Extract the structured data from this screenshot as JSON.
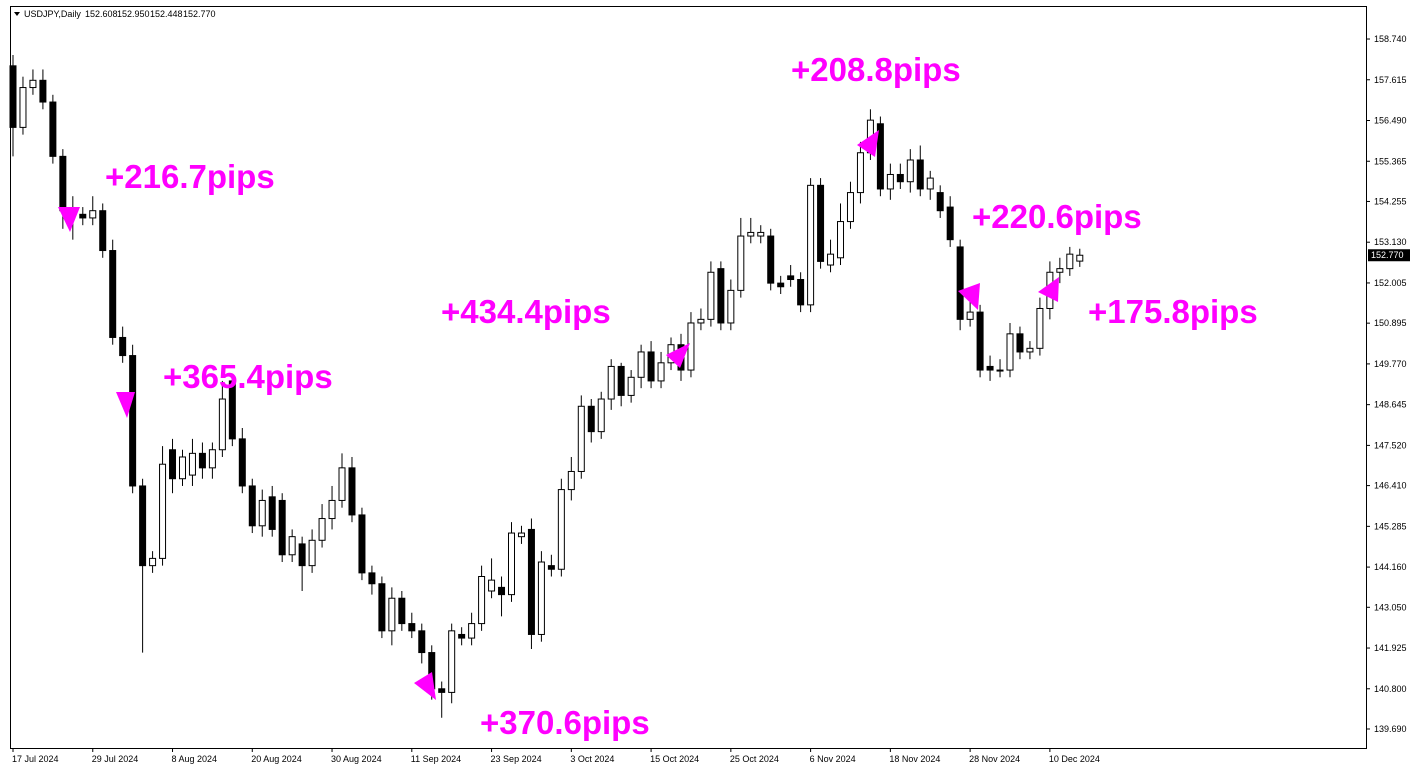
{
  "chart_data": {
    "type": "candlestick",
    "header": {
      "symbol": "USDJPY,Daily",
      "ohlc": [
        "152.608",
        "152.950",
        "152.448",
        "152.770"
      ]
    },
    "categories": [
      "17 Jul 2024",
      null,
      null,
      null,
      null,
      null,
      null,
      null,
      "29 Jul 2024",
      null,
      null,
      null,
      null,
      null,
      null,
      null,
      "8 Aug 2024",
      null,
      null,
      null,
      null,
      null,
      null,
      null,
      "20 Aug 2024",
      null,
      null,
      null,
      null,
      null,
      null,
      null,
      "30 Aug 2024",
      null,
      null,
      null,
      null,
      null,
      null,
      null,
      "11 Sep 2024",
      null,
      null,
      null,
      null,
      null,
      null,
      null,
      "23 Sep 2024",
      null,
      null,
      null,
      null,
      null,
      null,
      null,
      "3 Oct 2024",
      null,
      null,
      null,
      null,
      null,
      null,
      null,
      "15 Oct 2024",
      null,
      null,
      null,
      null,
      null,
      null,
      null,
      "25 Oct 2024",
      null,
      null,
      null,
      null,
      null,
      null,
      null,
      "6 Nov 2024",
      null,
      null,
      null,
      null,
      null,
      null,
      null,
      "18 Nov 2024",
      null,
      null,
      null,
      null,
      null,
      null,
      null,
      "28 Nov 2024",
      null,
      null,
      null,
      null,
      null,
      null,
      null,
      "10 Dec 2024",
      null,
      null,
      null
    ],
    "open": [
      158.0,
      156.3,
      157.4,
      157.6,
      157.0,
      155.5,
      154.0,
      153.9,
      153.8,
      154.0,
      152.9,
      150.5,
      150.0,
      146.4,
      144.2,
      144.4,
      147.4,
      146.6,
      146.7,
      147.3,
      146.9,
      147.4,
      149.3,
      147.7,
      146.4,
      145.3,
      146.1,
      146.0,
      144.5,
      144.8,
      144.2,
      144.9,
      145.5,
      146.0,
      146.9,
      145.6,
      144.0,
      143.7,
      142.4,
      143.3,
      142.6,
      142.4,
      141.8,
      140.8,
      140.7,
      142.3,
      142.2,
      142.6,
      143.5,
      143.6,
      143.4,
      145.0,
      145.2,
      142.3,
      144.2,
      144.1,
      146.3,
      146.8,
      148.6,
      147.9,
      148.8,
      149.7,
      148.9,
      149.4,
      150.1,
      149.3,
      149.8,
      150.3,
      149.6,
      150.9,
      151.0,
      152.4,
      150.9,
      151.8,
      153.3,
      153.3,
      153.3,
      152.0,
      152.2,
      152.1,
      151.4,
      154.7,
      152.5,
      152.7,
      153.7,
      154.5,
      155.6,
      156.4,
      154.6,
      155.0,
      154.8,
      155.4,
      154.6,
      154.5,
      154.1,
      153.0,
      151.0,
      151.2,
      149.7,
      149.6,
      149.6,
      150.6,
      150.1,
      150.2,
      151.3,
      152.3,
      152.4,
      152.608
    ],
    "high": [
      158.3,
      157.7,
      157.9,
      157.9,
      157.2,
      155.7,
      154.4,
      154.1,
      154.4,
      154.2,
      153.2,
      150.8,
      150.3,
      146.6,
      144.6,
      147.5,
      147.7,
      147.4,
      147.7,
      147.6,
      147.6,
      149.3,
      149.5,
      148.0,
      146.6,
      146.3,
      146.4,
      146.2,
      145.2,
      145.0,
      145.2,
      145.9,
      146.4,
      147.3,
      147.2,
      145.8,
      144.2,
      143.9,
      143.6,
      143.5,
      142.9,
      142.6,
      142.0,
      141.0,
      142.6,
      142.5,
      142.9,
      144.2,
      144.4,
      143.9,
      145.4,
      145.3,
      145.5,
      144.6,
      144.5,
      146.6,
      147.2,
      148.9,
      148.8,
      149.0,
      149.9,
      149.8,
      149.6,
      150.3,
      150.4,
      150.1,
      150.5,
      150.6,
      151.2,
      151.3,
      152.6,
      152.6,
      152.1,
      153.8,
      153.8,
      153.6,
      153.5,
      152.2,
      152.5,
      152.3,
      154.9,
      154.9,
      153.2,
      154.2,
      154.8,
      155.9,
      156.8,
      156.6,
      155.3,
      155.3,
      155.7,
      155.8,
      155.1,
      154.7,
      154.4,
      153.2,
      151.5,
      151.4,
      150.0,
      149.9,
      150.9,
      150.8,
      150.4,
      151.6,
      152.6,
      152.7,
      153.0,
      152.95
    ],
    "low": [
      155.5,
      156.1,
      157.2,
      156.8,
      155.3,
      153.5,
      153.2,
      153.6,
      153.6,
      152.7,
      150.3,
      149.8,
      146.2,
      141.8,
      144.0,
      144.2,
      146.2,
      146.4,
      146.4,
      146.6,
      146.6,
      147.2,
      147.5,
      146.2,
      145.1,
      145.0,
      145.0,
      144.3,
      144.3,
      143.5,
      144.0,
      144.7,
      145.2,
      145.8,
      145.4,
      143.8,
      143.4,
      142.2,
      142.0,
      142.4,
      142.2,
      141.5,
      140.5,
      140.0,
      140.4,
      142.0,
      142.0,
      142.4,
      143.3,
      142.8,
      143.2,
      144.8,
      141.9,
      142.1,
      143.9,
      143.9,
      146.0,
      146.6,
      147.6,
      147.7,
      148.5,
      148.6,
      148.7,
      149.1,
      149.1,
      149.1,
      149.6,
      149.3,
      149.4,
      150.7,
      150.8,
      150.7,
      150.7,
      151.6,
      153.1,
      153.1,
      151.8,
      151.7,
      151.9,
      151.2,
      151.2,
      152.4,
      152.3,
      152.5,
      153.5,
      154.2,
      155.4,
      154.4,
      154.3,
      154.6,
      154.5,
      154.4,
      154.3,
      153.8,
      153.0,
      150.7,
      150.8,
      149.4,
      149.3,
      149.4,
      149.4,
      149.9,
      149.9,
      150.0,
      151.0,
      152.0,
      152.2,
      152.448
    ],
    "close": [
      156.3,
      157.4,
      157.6,
      157.0,
      155.5,
      154.0,
      153.9,
      153.8,
      154.0,
      152.9,
      150.5,
      150.0,
      146.4,
      144.2,
      144.4,
      147.0,
      146.6,
      147.2,
      147.3,
      146.9,
      147.4,
      148.8,
      147.7,
      146.4,
      145.3,
      146.0,
      145.2,
      144.5,
      145.0,
      144.2,
      144.9,
      145.5,
      146.0,
      146.9,
      145.6,
      144.0,
      143.7,
      142.4,
      143.3,
      142.6,
      142.4,
      141.8,
      140.8,
      140.7,
      142.4,
      142.2,
      142.6,
      143.9,
      143.8,
      143.4,
      145.1,
      145.1,
      142.3,
      144.3,
      144.1,
      146.3,
      146.8,
      148.6,
      147.9,
      148.8,
      149.7,
      148.9,
      149.4,
      150.1,
      149.3,
      149.8,
      150.3,
      149.6,
      150.9,
      151.0,
      152.3,
      150.9,
      151.8,
      153.3,
      153.4,
      153.4,
      152.0,
      151.9,
      152.1,
      151.4,
      154.7,
      152.6,
      152.8,
      153.7,
      154.5,
      155.6,
      156.5,
      154.6,
      155.0,
      154.8,
      155.4,
      154.6,
      154.9,
      154.0,
      153.2,
      151.0,
      151.2,
      149.6,
      149.6,
      149.6,
      150.6,
      150.1,
      150.2,
      151.3,
      152.3,
      152.4,
      152.8,
      152.77
    ],
    "ylim": [
      139.165,
      159.624
    ],
    "yticks": [
      {
        "value": 158.74,
        "label": "158.740"
      },
      {
        "value": 157.615,
        "label": "157.615"
      },
      {
        "value": 156.49,
        "label": "156.490"
      },
      {
        "value": 155.365,
        "label": "155.365"
      },
      {
        "value": 154.255,
        "label": "154.255"
      },
      {
        "value": 153.13,
        "label": "153.130"
      },
      {
        "value": 152.005,
        "label": "152.005"
      },
      {
        "value": 150.895,
        "label": "150.895"
      },
      {
        "value": 149.77,
        "label": "149.770"
      },
      {
        "value": 148.645,
        "label": "148.645"
      },
      {
        "value": 147.52,
        "label": "147.520"
      },
      {
        "value": 146.41,
        "label": "146.410"
      },
      {
        "value": 145.285,
        "label": "145.285"
      },
      {
        "value": 144.16,
        "label": "144.160"
      },
      {
        "value": 143.05,
        "label": "143.050"
      },
      {
        "value": 141.925,
        "label": "141.925"
      },
      {
        "value": 140.8,
        "label": "140.800"
      },
      {
        "value": 139.69,
        "label": "139.690"
      }
    ],
    "last_price": {
      "value": 152.77,
      "label": "152.770"
    },
    "annotations": [
      "+216.7pips",
      "+365.4pips",
      "+370.6pips",
      "+434.4pips",
      "+208.8pips",
      "+220.6pips",
      "+175.8pips"
    ],
    "up_color": "#ffffff",
    "down_color": "#000000",
    "annotation_color": "#ff00ff"
  }
}
